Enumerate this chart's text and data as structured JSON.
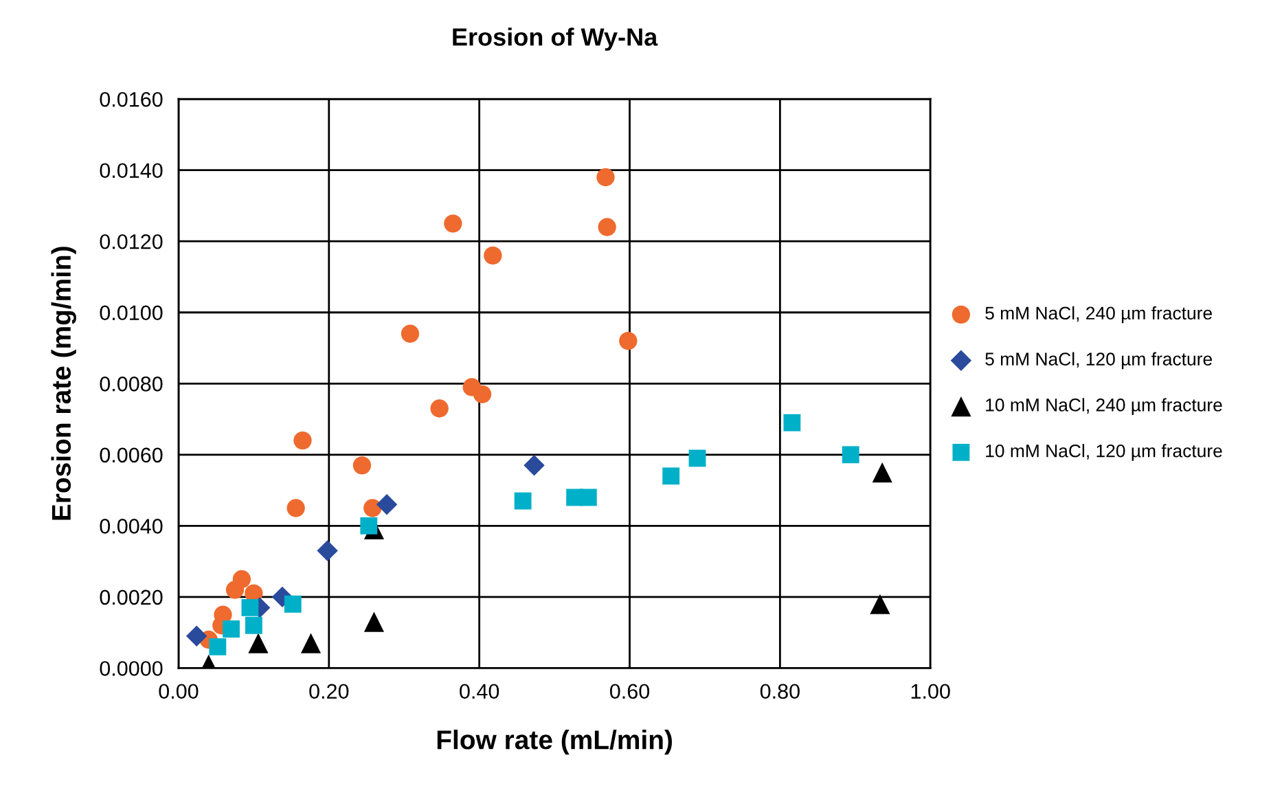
{
  "chart_data": {
    "type": "scatter",
    "title": "Erosion of Wy-Na",
    "xlabel": "Flow rate (mL/min)",
    "ylabel": "Erosion rate (mg/min)",
    "series": [
      {
        "name": "5 mM NaCl, 240 µm fracture",
        "color": "#ee6a2e",
        "marker": "circle",
        "x": [
          0.568,
          0.57,
          0.365,
          0.418,
          0.308,
          0.598,
          0.39,
          0.404,
          0.347,
          0.165,
          0.244,
          0.156,
          0.258,
          0.084,
          0.075,
          0.1,
          0.059,
          0.057,
          0.04
        ],
        "values": [
          0.0138,
          0.0124,
          0.0125,
          0.0116,
          0.0094,
          0.0092,
          0.0079,
          0.0077,
          0.0073,
          0.0064,
          0.0057,
          0.0045,
          0.0045,
          0.0025,
          0.0022,
          0.0021,
          0.0015,
          0.0012,
          0.0008
        ]
      },
      {
        "name": "5 mM NaCl, 120 µm fracture",
        "color": "#2a4a9c",
        "marker": "diamond",
        "x": [
          0.024,
          0.108,
          0.138,
          0.198,
          0.277,
          0.473
        ],
        "values": [
          0.0009,
          0.0017,
          0.002,
          0.0033,
          0.0046,
          0.0057
        ]
      },
      {
        "name": "10 mM NaCl, 240 µm fracture",
        "color": "#000000",
        "marker": "triangle",
        "x": [
          0.04,
          0.106,
          0.176,
          0.26,
          0.26,
          0.936,
          0.933
        ],
        "values": [
          0.0001,
          0.0007,
          0.0007,
          0.0013,
          0.0039,
          0.0055,
          0.0018
        ]
      },
      {
        "name": "10 mM NaCl, 120 µm fracture",
        "color": "#00b0c8",
        "marker": "square",
        "x": [
          0.052,
          0.07,
          0.095,
          0.1,
          0.152,
          0.253,
          0.458,
          0.527,
          0.545,
          0.655,
          0.69,
          0.816,
          0.894
        ],
        "values": [
          0.0006,
          0.0011,
          0.0017,
          0.0012,
          0.0018,
          0.004,
          0.0047,
          0.0048,
          0.0048,
          0.0054,
          0.0059,
          0.0069,
          0.006
        ]
      }
    ],
    "xlim": [
      0,
      1.0
    ],
    "ylim": [
      0,
      0.016
    ],
    "xticks": [
      {
        "value": 0,
        "label": "0.00"
      },
      {
        "value": 0.2,
        "label": "0.20"
      },
      {
        "value": 0.4,
        "label": "0.40"
      },
      {
        "value": 0.6,
        "label": "0.60"
      },
      {
        "value": 0.8,
        "label": "0.80"
      },
      {
        "value": 1.0,
        "label": "1.00"
      }
    ],
    "yticks": [
      {
        "value": 0,
        "label": "0.0000"
      },
      {
        "value": 0.002,
        "label": "0.0020"
      },
      {
        "value": 0.004,
        "label": "0.0040"
      },
      {
        "value": 0.006,
        "label": "0.0060"
      },
      {
        "value": 0.008,
        "label": "0.0080"
      },
      {
        "value": 0.01,
        "label": "0.0100"
      },
      {
        "value": 0.012,
        "label": "0.0120"
      },
      {
        "value": 0.014,
        "label": "0.0140"
      },
      {
        "value": 0.016,
        "label": "0.0160"
      }
    ],
    "grid": true,
    "legend": "right"
  }
}
